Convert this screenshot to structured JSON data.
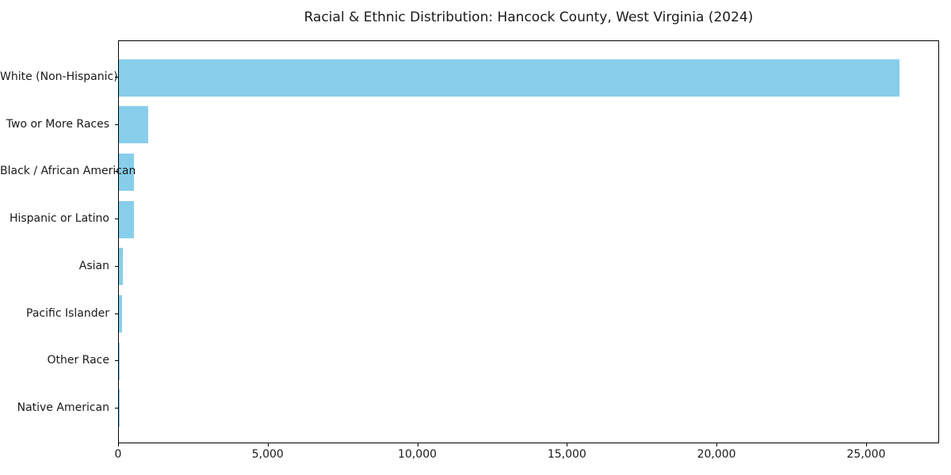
{
  "chart_data": {
    "type": "bar",
    "orientation": "horizontal",
    "title": "Racial & Ethnic Distribution: Hancock County, West Virginia (2024)",
    "categories": [
      "White (Non-Hispanic)",
      "Two or More Races",
      "Black / African American",
      "Hispanic or Latino",
      "Asian",
      "Pacific Islander",
      "Other Race",
      "Native American"
    ],
    "values": [
      26133,
      970,
      510,
      505,
      135,
      105,
      25,
      5
    ],
    "bar_color": "#87CEEB",
    "xlabel": "",
    "ylabel": "",
    "xlim": [
      0,
      27440
    ],
    "xticks": [
      0,
      5000,
      10000,
      15000,
      20000,
      25000
    ],
    "xtick_labels": [
      "0",
      "5,000",
      "10,000",
      "15,000",
      "20,000",
      "25,000"
    ],
    "grid": false,
    "legend": null
  }
}
